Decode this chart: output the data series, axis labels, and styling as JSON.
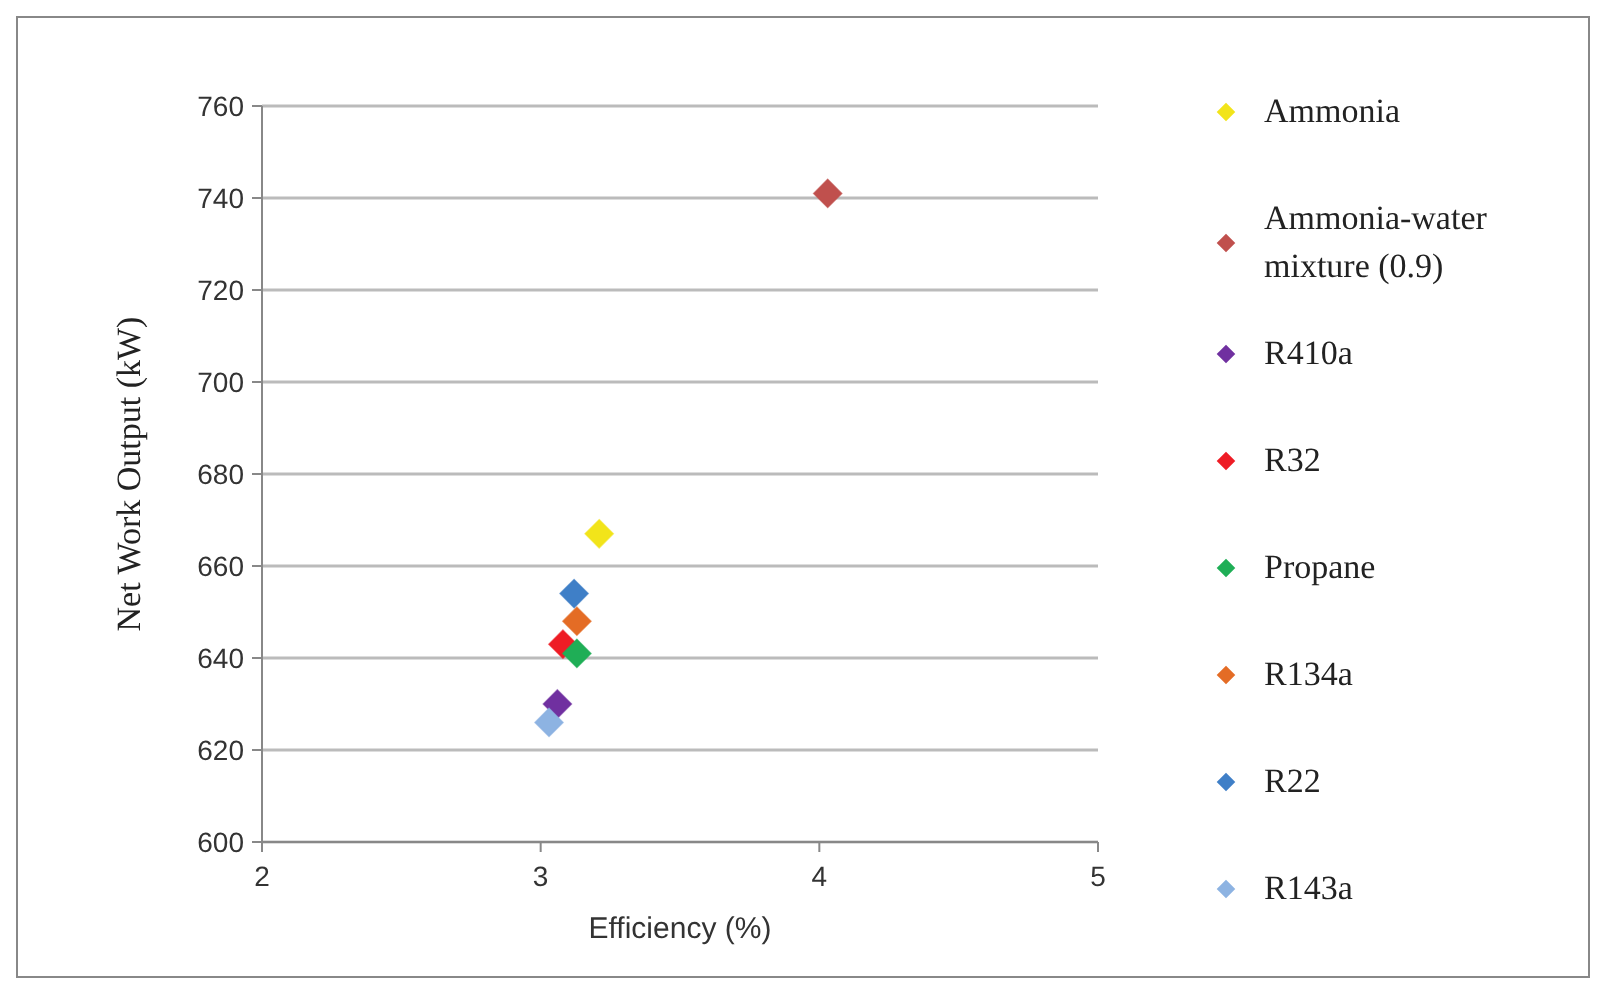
{
  "chart_data": {
    "type": "scatter",
    "xlabel": "Efficiency (%)",
    "ylabel": "Net  Work Output  (kW)",
    "xlim": [
      2,
      5
    ],
    "xticks": [
      2,
      3,
      4,
      5
    ],
    "ylim": [
      600,
      760
    ],
    "yticks": [
      600,
      620,
      640,
      660,
      680,
      700,
      720,
      740,
      760
    ],
    "grid": "y",
    "legend": "right",
    "marker": "diamond",
    "series": [
      {
        "name": "Ammonia",
        "color": "#f2e41a",
        "x": [
          3.21
        ],
        "values": [
          667
        ]
      },
      {
        "name": "Ammonia-water mixture (0.9)",
        "color": "#c0504d",
        "x": [
          4.03
        ],
        "values": [
          741
        ]
      },
      {
        "name": "R410a",
        "color": "#7030a0",
        "x": [
          3.06
        ],
        "values": [
          630
        ]
      },
      {
        "name": "R32",
        "color": "#ee1c25",
        "x": [
          3.08
        ],
        "values": [
          643
        ]
      },
      {
        "name": "Propane",
        "color": "#1fae56",
        "x": [
          3.13
        ],
        "values": [
          641
        ]
      },
      {
        "name": "R134a",
        "color": "#e46c25",
        "x": [
          3.13
        ],
        "values": [
          648
        ]
      },
      {
        "name": "R22",
        "color": "#3f7fc7",
        "x": [
          3.12
        ],
        "values": [
          654
        ]
      },
      {
        "name": "R143a",
        "color": "#8db3e2",
        "x": [
          3.03
        ],
        "values": [
          626
        ]
      }
    ]
  }
}
